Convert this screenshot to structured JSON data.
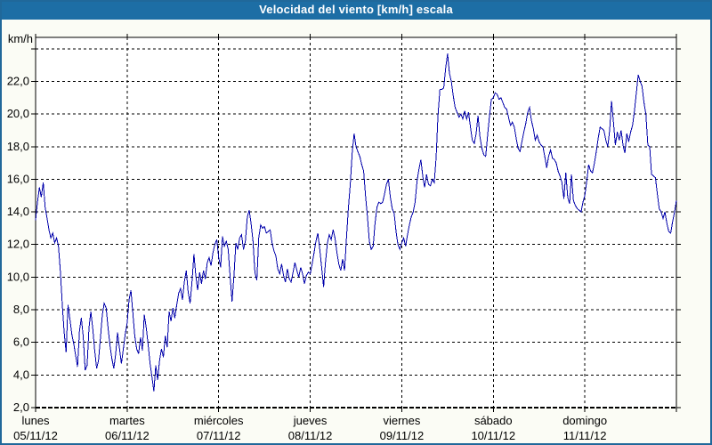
{
  "window": {
    "title": "Velocidad del viento [km/h] escala",
    "title_bar_color": "#1d6ea5",
    "border_color": "#20689a",
    "background_color": "#fbfcf5"
  },
  "chart_data": {
    "type": "line",
    "title": "Velocidad del viento [km/h] escala",
    "unit_label": "km/h",
    "line_color": "#0000aa",
    "grid_color": "#000000",
    "plot_background": "#ffffff",
    "ylim": [
      2.0,
      24.7
    ],
    "grid": "dashed",
    "samples_per_day": 48,
    "y_ticks": [
      {
        "v": 2,
        "label": "2,0"
      },
      {
        "v": 4,
        "label": "4,0"
      },
      {
        "v": 6,
        "label": "6,0"
      },
      {
        "v": 8,
        "label": "8,0"
      },
      {
        "v": 10,
        "label": "10,0"
      },
      {
        "v": 12,
        "label": "12,0"
      },
      {
        "v": 14,
        "label": "14,0"
      },
      {
        "v": 16,
        "label": "16,0"
      },
      {
        "v": 18,
        "label": "18,0"
      },
      {
        "v": 20,
        "label": "20,0"
      },
      {
        "v": 22,
        "label": "22,0"
      },
      {
        "v": 24,
        "label": ""
      }
    ],
    "days": [
      {
        "name": "lunes",
        "date": "05/11/12"
      },
      {
        "name": "martes",
        "date": "06/11/12"
      },
      {
        "name": "miércoles",
        "date": "07/11/12"
      },
      {
        "name": "jueves",
        "date": "08/11/12"
      },
      {
        "name": "viernes",
        "date": "09/11/12"
      },
      {
        "name": "sábado",
        "date": "10/11/12"
      },
      {
        "name": "domingo",
        "date": "11/11/12"
      }
    ],
    "series": [
      13.5,
      14.6,
      15.5,
      14.9,
      15.8,
      14.3,
      13.6,
      12.9,
      12.4,
      12.7,
      12.1,
      12.4,
      11.9,
      10.3,
      8.3,
      6.6,
      5.4,
      8.3,
      7.4,
      6.5,
      5.9,
      5.2,
      4.5,
      6.7,
      7.5,
      6.3,
      4.3,
      4.6,
      6.9,
      7.9,
      6.8,
      5.5,
      4.4,
      4.9,
      6.3,
      7.7,
      8.4,
      8.1,
      6.9,
      5.8,
      5.0,
      4.4,
      5.3,
      6.6,
      5.6,
      4.7,
      5.6,
      6.5,
      7.2,
      8.6,
      9.2,
      7.8,
      6.4,
      5.6,
      5.3,
      6.3,
      5.5,
      7.7,
      6.9,
      5.9,
      4.7,
      3.9,
      3.0,
      4.6,
      3.7,
      4.9,
      5.6,
      5.1,
      6.4,
      5.7,
      7.9,
      7.3,
      8.1,
      7.5,
      8.3,
      9.0,
      9.3,
      8.6,
      9.7,
      10.4,
      9.1,
      8.4,
      9.7,
      11.4,
      10.1,
      9.2,
      10.3,
      9.6,
      10.4,
      9.9,
      10.9,
      11.2,
      10.7,
      11.5,
      12.0,
      12.3,
      11.2,
      10.6,
      12.5,
      11.9,
      12.2,
      11.7,
      10.0,
      8.5,
      10.1,
      12.1,
      11.7,
      12.4,
      12.6,
      11.7,
      12.2,
      13.7,
      14.1,
      13.3,
      12.2,
      10.3,
      9.8,
      12.4,
      13.2,
      13.0,
      13.1,
      12.7,
      12.8,
      12.9,
      12.1,
      11.6,
      11.3,
      10.5,
      10.2,
      10.8,
      10.1,
      9.7,
      10.5,
      9.9,
      9.7,
      10.3,
      10.9,
      10.4,
      10.0,
      10.6,
      10.2,
      9.6,
      10.1,
      10.3,
      10.2,
      10.8,
      11.5,
      12.2,
      12.7,
      11.7,
      10.6,
      9.4,
      10.9,
      12.1,
      12.6,
      12.3,
      12.9,
      12.4,
      11.5,
      10.8,
      10.4,
      11.1,
      10.4,
      12.4,
      14.2,
      15.7,
      17.6,
      18.8,
      18.0,
      17.7,
      17.4,
      16.9,
      16.5,
      15.0,
      13.7,
      12.2,
      11.7,
      11.9,
      13.3,
      14.3,
      14.6,
      14.5,
      14.6,
      15.1,
      15.7,
      16.0,
      14.9,
      14.2,
      13.9,
      12.8,
      12.0,
      11.7,
      12.1,
      12.4,
      11.9,
      12.6,
      13.2,
      13.7,
      14.0,
      14.6,
      15.9,
      16.6,
      17.2,
      16.2,
      15.5,
      16.3,
      15.7,
      15.6,
      16.0,
      15.8,
      17.3,
      19.9,
      21.5,
      21.5,
      21.6,
      22.8,
      23.7,
      22.5,
      22.0,
      21.1,
      20.4,
      20.1,
      19.8,
      20.0,
      19.7,
      20.2,
      19.7,
      20.1,
      19.2,
      18.4,
      18.2,
      18.8,
      19.9,
      18.6,
      17.9,
      17.5,
      17.4,
      18.7,
      19.9,
      20.9,
      21.0,
      21.3,
      21.2,
      20.9,
      21.0,
      20.7,
      20.4,
      20.3,
      19.8,
      19.3,
      19.5,
      19.2,
      18.5,
      17.9,
      17.7,
      18.3,
      18.9,
      19.4,
      20.1,
      20.4,
      19.6,
      19.1,
      18.4,
      18.7,
      18.3,
      18.1,
      18.0,
      17.4,
      16.7,
      17.4,
      17.8,
      17.3,
      17.2,
      17.0,
      16.5,
      16.2,
      15.8,
      14.8,
      16.4,
      14.9,
      14.5,
      16.3,
      14.7,
      14.4,
      14.2,
      14.1,
      14.0,
      14.6,
      15.0,
      15.9,
      16.9,
      16.5,
      16.4,
      17.0,
      17.7,
      18.5,
      19.2,
      19.1,
      19.0,
      18.4,
      18.0,
      19.0,
      20.8,
      19.5,
      18.1,
      18.9,
      18.4,
      19.0,
      18.1,
      17.6,
      18.8,
      18.3,
      18.9,
      19.3,
      20.2,
      21.3,
      22.4,
      22.0,
      21.7,
      20.7,
      20.0,
      18.1,
      18.0,
      16.3,
      16.2,
      16.1,
      15.1,
      14.2,
      14.0,
      13.6,
      14.0,
      13.3,
      12.8,
      12.7,
      13.4,
      14.0,
      14.7
    ]
  }
}
